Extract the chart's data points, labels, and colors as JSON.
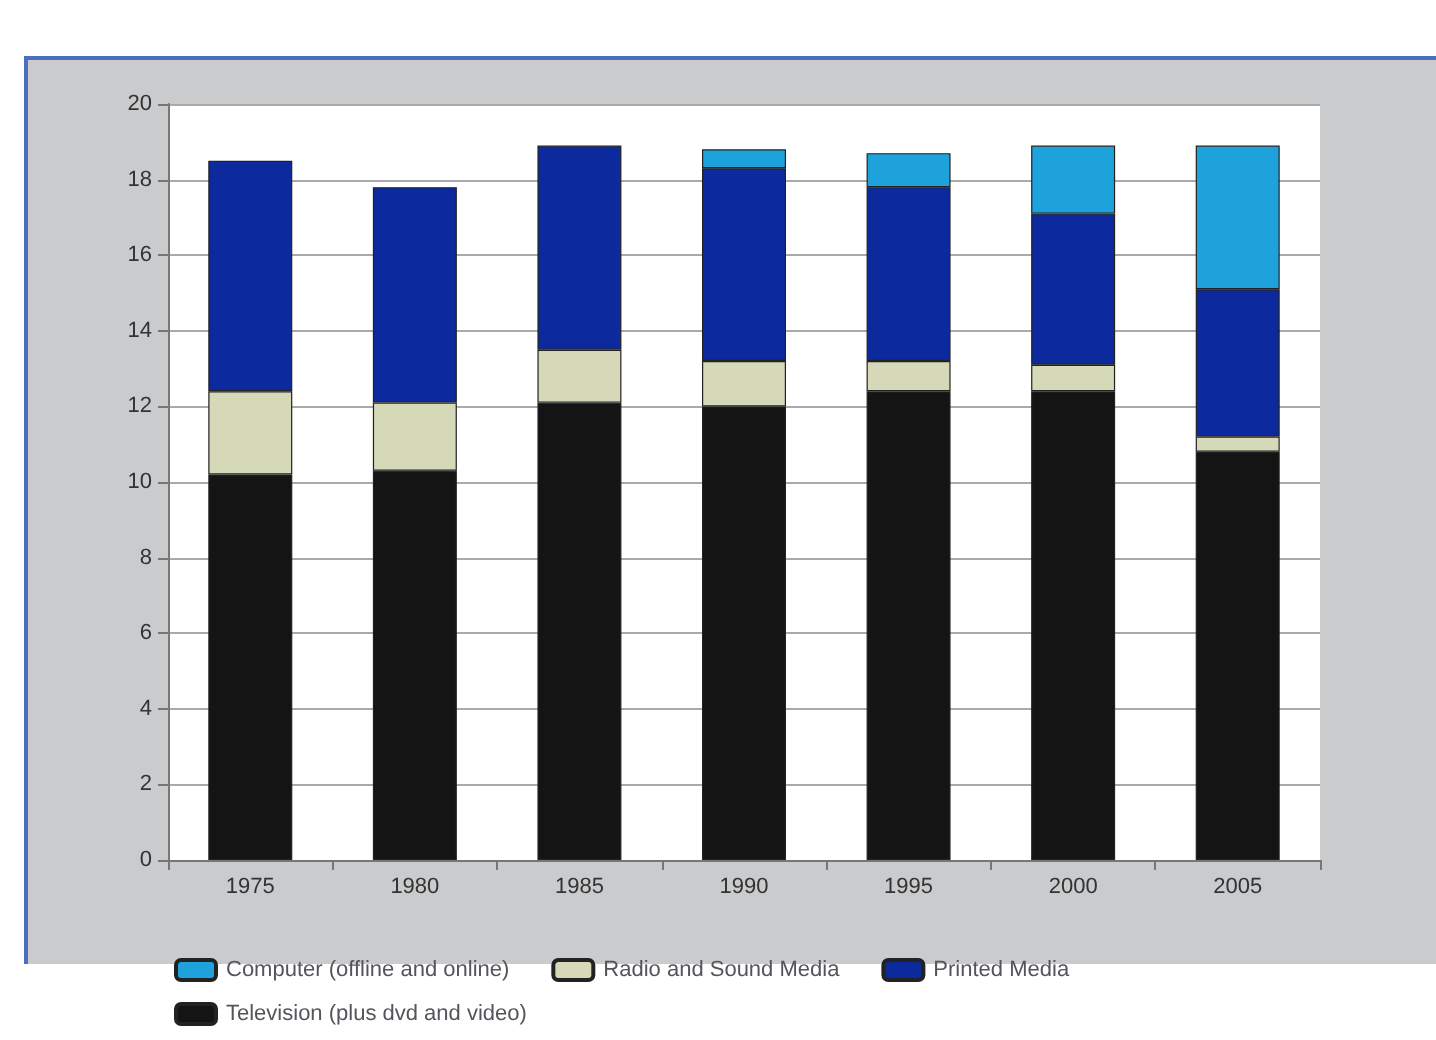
{
  "chart_data": {
    "type": "bar",
    "stacked": true,
    "categories": [
      "1975",
      "1980",
      "1985",
      "1990",
      "1995",
      "2000",
      "2005"
    ],
    "series": [
      {
        "name": "Television (plus dvd and video)",
        "color": "#141414",
        "values": [
          10.2,
          10.3,
          12.1,
          12.0,
          12.4,
          12.4,
          10.8
        ]
      },
      {
        "name": "Radio and Sound Media",
        "color": "#d5d9b8",
        "values": [
          2.2,
          1.8,
          1.4,
          1.2,
          0.8,
          0.7,
          0.4
        ]
      },
      {
        "name": "Printed Media",
        "color": "#0c2a9e",
        "values": [
          6.1,
          5.7,
          5.4,
          5.1,
          4.6,
          4.0,
          3.9
        ]
      },
      {
        "name": "Computer (offline and online)",
        "color": "#1ea2dc",
        "values": [
          null,
          null,
          null,
          0.5,
          0.9,
          1.8,
          3.8
        ]
      }
    ],
    "ylim": [
      0,
      20
    ],
    "yticks": [
      0,
      2,
      4,
      6,
      8,
      10,
      12,
      14,
      16,
      18,
      20
    ],
    "grid": "y",
    "legend": "bottom"
  }
}
